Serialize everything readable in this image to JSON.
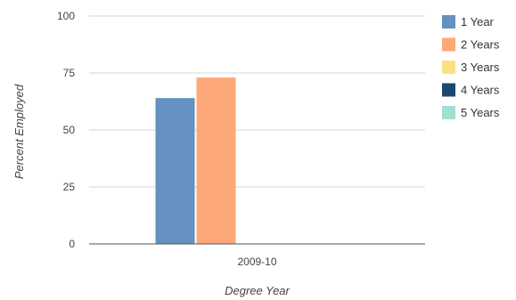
{
  "chart_data": {
    "type": "bar",
    "categories": [
      "2009-10"
    ],
    "series": [
      {
        "name": "1 Year",
        "values": [
          64
        ],
        "color": "#6491c0"
      },
      {
        "name": "2 Years",
        "values": [
          73
        ],
        "color": "#fca878"
      },
      {
        "name": "3 Years",
        "values": [
          null
        ],
        "color": "#fbe083"
      },
      {
        "name": "4 Years",
        "values": [
          null
        ],
        "color": "#1d4773"
      },
      {
        "name": "5 Years",
        "values": [
          null
        ],
        "color": "#9fe0d0"
      }
    ],
    "yticks": [
      "0",
      "25",
      "50",
      "75",
      "100"
    ],
    "ylim": [
      0,
      100
    ],
    "xlabel": "Degree Year",
    "ylabel": "Percent Employed",
    "grid": true,
    "legend_position": "right"
  }
}
